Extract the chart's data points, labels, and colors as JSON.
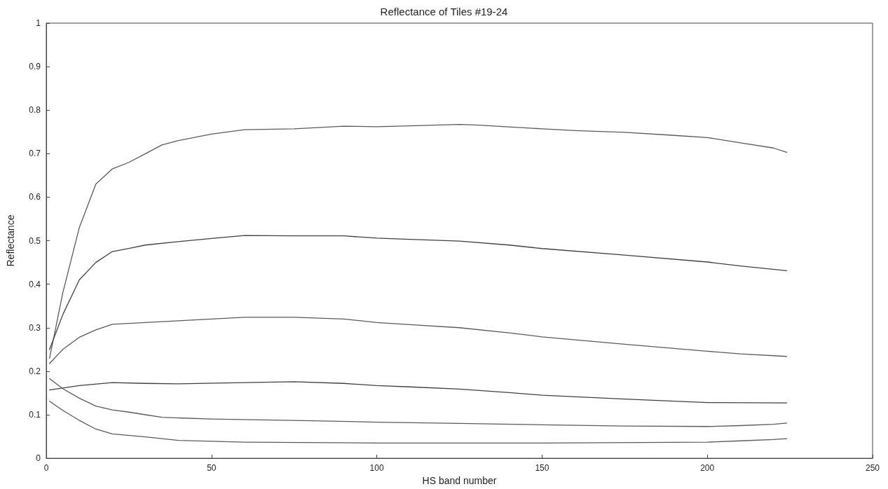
{
  "chart_data": {
    "type": "line",
    "title": "Reflectance of Tiles #19-24",
    "xlabel": "HS band number",
    "ylabel": "Reflectance",
    "xlim": [
      0,
      250
    ],
    "xticks": [
      0,
      50,
      100,
      150,
      200,
      250
    ],
    "ylim": [
      0,
      1
    ],
    "yticks": [
      0,
      0.1,
      0.2,
      0.3,
      0.4,
      0.5,
      0.6,
      0.7,
      0.8,
      0.9,
      1
    ],
    "grid": false,
    "marker": "none",
    "line_style": "solid",
    "series": [
      {
        "color": "#5a5a5a",
        "x": [
          1,
          5,
          10,
          15,
          20,
          25,
          30,
          35,
          40,
          50,
          60,
          75,
          90,
          100,
          110,
          125,
          130,
          150,
          160,
          175,
          190,
          200,
          210,
          220,
          224
        ],
        "values": [
          0.23,
          0.38,
          0.53,
          0.63,
          0.665,
          0.68,
          0.7,
          0.72,
          0.73,
          0.745,
          0.755,
          0.757,
          0.763,
          0.762,
          0.764,
          0.767,
          0.766,
          0.757,
          0.753,
          0.749,
          0.742,
          0.737,
          0.725,
          0.713,
          0.703
        ]
      },
      {
        "color": "#404040",
        "x": [
          1,
          5,
          10,
          15,
          20,
          25,
          30,
          40,
          50,
          60,
          75,
          90,
          100,
          110,
          125,
          140,
          150,
          175,
          200,
          210,
          224
        ],
        "values": [
          0.25,
          0.33,
          0.41,
          0.45,
          0.475,
          0.482,
          0.49,
          0.498,
          0.505,
          0.512,
          0.511,
          0.511,
          0.506,
          0.503,
          0.499,
          0.49,
          0.482,
          0.467,
          0.451,
          0.442,
          0.431
        ]
      },
      {
        "color": "#5a5a5a",
        "x": [
          1,
          5,
          10,
          15,
          20,
          30,
          40,
          50,
          60,
          75,
          90,
          100,
          110,
          125,
          140,
          150,
          175,
          200,
          210,
          224
        ],
        "values": [
          0.218,
          0.25,
          0.278,
          0.295,
          0.308,
          0.312,
          0.316,
          0.32,
          0.324,
          0.324,
          0.32,
          0.312,
          0.307,
          0.3,
          0.288,
          0.279,
          0.262,
          0.246,
          0.24,
          0.234
        ]
      },
      {
        "color": "#404040",
        "x": [
          1,
          10,
          20,
          30,
          40,
          60,
          75,
          90,
          100,
          110,
          125,
          140,
          150,
          175,
          200,
          224
        ],
        "values": [
          0.157,
          0.167,
          0.174,
          0.172,
          0.171,
          0.174,
          0.176,
          0.172,
          0.167,
          0.164,
          0.159,
          0.151,
          0.145,
          0.136,
          0.128,
          0.127
        ]
      },
      {
        "color": "#5a5a5a",
        "x": [
          1,
          5,
          10,
          15,
          20,
          25,
          30,
          35,
          50,
          75,
          100,
          125,
          150,
          175,
          200,
          210,
          220,
          224
        ],
        "values": [
          0.183,
          0.16,
          0.138,
          0.12,
          0.111,
          0.106,
          0.1,
          0.094,
          0.09,
          0.087,
          0.083,
          0.08,
          0.077,
          0.074,
          0.073,
          0.075,
          0.078,
          0.081
        ]
      },
      {
        "color": "#5a5a5a",
        "x": [
          1,
          5,
          10,
          15,
          20,
          30,
          40,
          60,
          100,
          150,
          200,
          210,
          220,
          224
        ],
        "values": [
          0.131,
          0.11,
          0.087,
          0.067,
          0.056,
          0.049,
          0.041,
          0.037,
          0.035,
          0.035,
          0.037,
          0.04,
          0.043,
          0.045
        ]
      }
    ]
  }
}
